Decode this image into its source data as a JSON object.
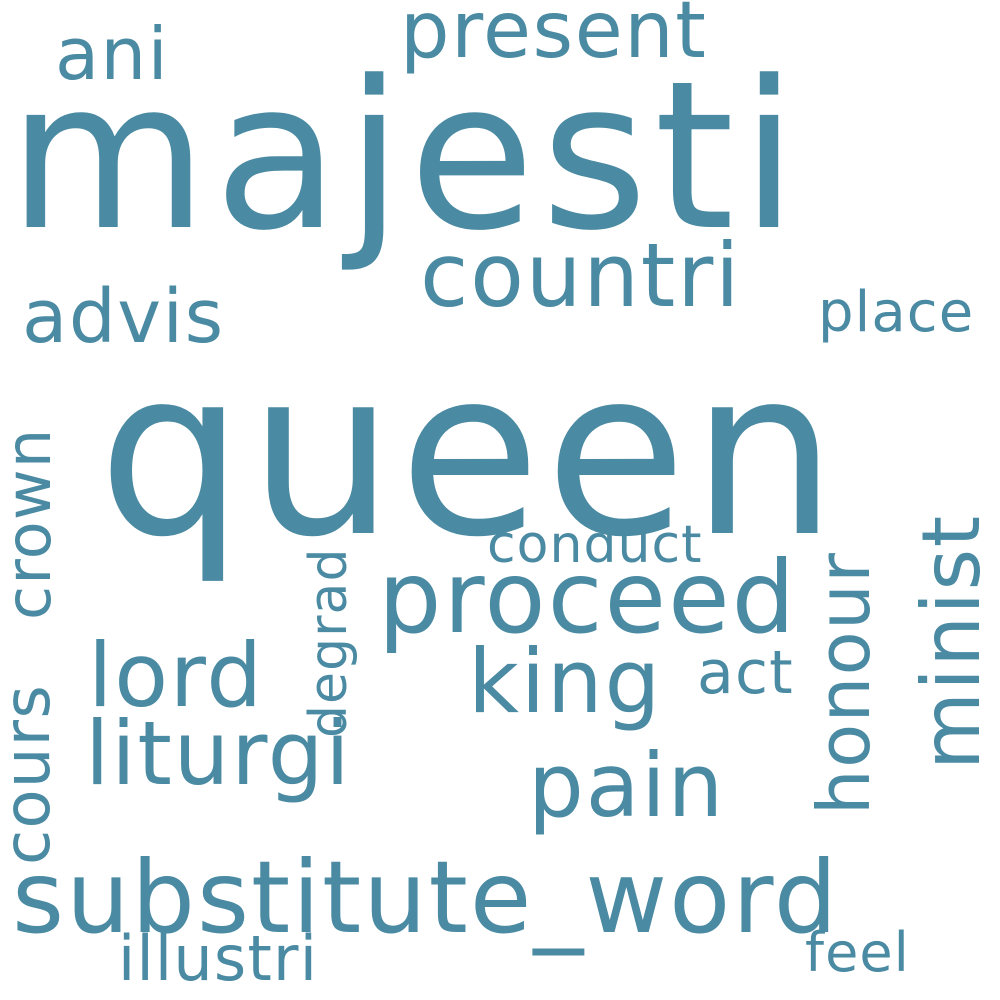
{
  "colors": {
    "background": "#ffffff",
    "word": "#4a8aa2"
  },
  "words": {
    "majesti": "majesti",
    "queen": "queen",
    "present": "present",
    "ani": "ani",
    "countri": "countri",
    "advis": "advis",
    "place": "place",
    "proceed": "proceed",
    "conduct": "conduct",
    "lord": "lord",
    "king": "king",
    "act": "act",
    "liturgi": "liturgi",
    "pain": "pain",
    "substitute_word": "substitute_word",
    "illustri": "illustri",
    "feel": "feel",
    "crown": "crown",
    "cours": "cours",
    "degrad": "degrad",
    "honour": "honour",
    "minist": "minist"
  }
}
